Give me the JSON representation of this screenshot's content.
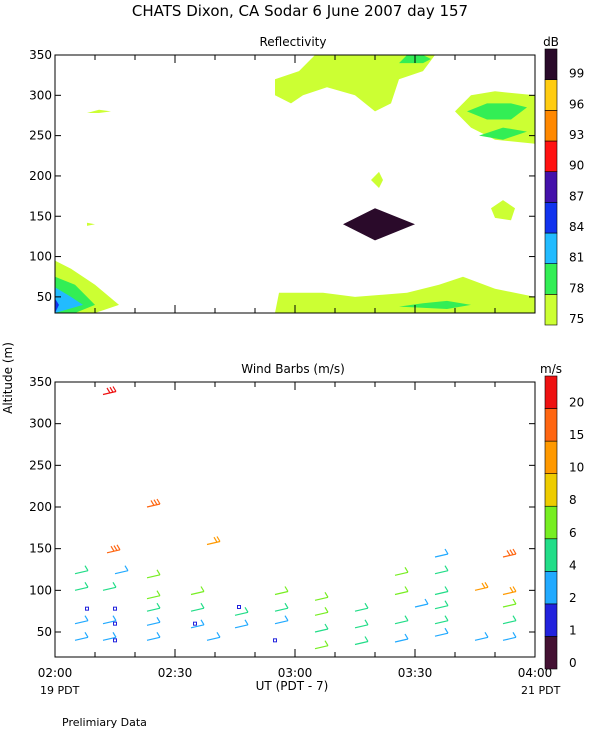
{
  "header": {
    "title": "CHATS Dixon, CA  Sodar   6 June 2007  day 157"
  },
  "chart_data": [
    {
      "type": "heatmap",
      "title": "Reflectivity",
      "ylabel": "Altitude (m)",
      "xlim": [
        "02:00",
        "04:00"
      ],
      "ylim": [
        30,
        350
      ],
      "x_ticks": [
        "02:00",
        "02:30",
        "03:00",
        "03:30",
        "04:00"
      ],
      "y_ticks": [
        50,
        100,
        150,
        200,
        250,
        300,
        350
      ],
      "colorbar": {
        "unit": "dB",
        "levels": [
          75,
          78,
          81,
          84,
          87,
          90,
          93,
          96,
          99
        ],
        "colors": [
          "#ccff33",
          "#33ee55",
          "#22bbff",
          "#1133ee",
          "#4411aa",
          "#ff1111",
          "#ff8800",
          "#ffcc11",
          "#2a0a2a"
        ]
      },
      "regions": [
        {
          "level": 75,
          "x": [
            "02:00",
            "02:00",
            "02:04",
            "02:10",
            "02:16",
            "02:10",
            "02:00"
          ],
          "y": [
            30,
            95,
            85,
            65,
            40,
            30,
            30
          ]
        },
        {
          "level": 78,
          "x": [
            "02:00",
            "02:00",
            "02:05",
            "02:10",
            "02:05",
            "02:00"
          ],
          "y": [
            30,
            75,
            65,
            40,
            30,
            30
          ]
        },
        {
          "level": 81,
          "x": [
            "02:00",
            "02:00",
            "02:04",
            "02:07",
            "02:00"
          ],
          "y": [
            30,
            62,
            50,
            40,
            30
          ]
        },
        {
          "level": 84,
          "x": [
            "02:00",
            "02:00",
            "02:01",
            "02:00"
          ],
          "y": [
            30,
            48,
            40,
            30
          ]
        },
        {
          "level": 75,
          "x": [
            "02:08",
            "02:11",
            "02:14",
            "02:11",
            "02:08"
          ],
          "y": [
            278,
            282,
            280,
            278,
            278
          ]
        },
        {
          "level": 75,
          "x": [
            "02:08",
            "02:10",
            "02:08",
            "02:08"
          ],
          "y": [
            138,
            140,
            142,
            138
          ]
        },
        {
          "level": 75,
          "x": [
            "02:55",
            "03:01",
            "03:05",
            "03:08",
            "03:12",
            "03:16",
            "03:20",
            "03:24",
            "03:26",
            "03:35",
            "03:32",
            "03:26",
            "03:24",
            "03:20",
            "03:15",
            "03:08",
            "03:02",
            "02:59",
            "02:55",
            "02:55"
          ],
          "y": [
            320,
            330,
            350,
            350,
            350,
            350,
            350,
            350,
            350,
            350,
            330,
            320,
            290,
            280,
            300,
            310,
            300,
            290,
            300,
            320
          ]
        },
        {
          "level": 78,
          "x": [
            "03:26",
            "03:28",
            "03:32",
            "03:34",
            "03:32",
            "03:26"
          ],
          "y": [
            340,
            350,
            350,
            345,
            340,
            340
          ]
        },
        {
          "level": 75,
          "x": [
            "03:19",
            "03:21",
            "03:22",
            "03:21",
            "03:19"
          ],
          "y": [
            195,
            205,
            195,
            185,
            195
          ]
        },
        {
          "level": 75,
          "x": [
            "03:49",
            "03:52",
            "03:55",
            "03:54",
            "03:50",
            "03:49"
          ],
          "y": [
            160,
            170,
            160,
            145,
            148,
            160
          ]
        },
        {
          "level": 75,
          "x": [
            "03:40",
            "03:44",
            "03:50",
            "04:00",
            "04:00",
            "03:50",
            "03:44",
            "03:40"
          ],
          "y": [
            280,
            300,
            305,
            300,
            240,
            245,
            260,
            280
          ]
        },
        {
          "level": 78,
          "x": [
            "03:43",
            "03:48",
            "03:54",
            "03:58",
            "03:54",
            "03:48",
            "03:43"
          ],
          "y": [
            280,
            290,
            290,
            285,
            270,
            270,
            280
          ]
        },
        {
          "level": 78,
          "x": [
            "03:46",
            "03:52",
            "03:58",
            "03:52",
            "03:46"
          ],
          "y": [
            250,
            260,
            255,
            245,
            250
          ]
        },
        {
          "level": 75,
          "x": [
            "02:55",
            "02:56",
            "03:07",
            "03:15",
            "03:28",
            "03:36",
            "03:42",
            "03:50",
            "04:00",
            "04:00",
            "02:55"
          ],
          "y": [
            30,
            55,
            55,
            50,
            55,
            65,
            75,
            60,
            50,
            30,
            30
          ]
        },
        {
          "level": 78,
          "x": [
            "03:26",
            "03:32",
            "03:38",
            "03:44",
            "03:38",
            "03:26"
          ],
          "y": [
            38,
            42,
            45,
            40,
            35,
            38
          ]
        },
        {
          "level": 99,
          "x": [
            "03:12",
            "03:20",
            "03:30",
            "03:20",
            "03:12"
          ],
          "y": [
            140,
            160,
            140,
            120,
            140
          ]
        }
      ]
    },
    {
      "type": "scatter",
      "title": "Wind Barbs (m/s)",
      "ylabel": "Altitude (m)",
      "xlabel": "UT  (PDT - 7)",
      "xlim": [
        "02:00",
        "04:00"
      ],
      "ylim": [
        20,
        350
      ],
      "x_ticks": [
        "02:00",
        "02:30",
        "03:00",
        "03:30",
        "04:00"
      ],
      "y_ticks": [
        50,
        100,
        150,
        200,
        250,
        300,
        350
      ],
      "colorbar": {
        "unit": "m/s",
        "levels": [
          0,
          1,
          2,
          4,
          6,
          8,
          10,
          15,
          20
        ],
        "colors": [
          "#441133",
          "#2222dd",
          "#22aaff",
          "#22dd88",
          "#77ee22",
          "#eecc00",
          "#ff9900",
          "#ff6611",
          "#ee1111"
        ]
      },
      "barbs": [
        {
          "x": "02:05",
          "y": 40,
          "s": 2
        },
        {
          "x": "02:05",
          "y": 60,
          "s": 3
        },
        {
          "x": "02:05",
          "y": 100,
          "s": 4
        },
        {
          "x": "02:05",
          "y": 120,
          "s": 5
        },
        {
          "x": "02:08",
          "y": 78,
          "s": 1
        },
        {
          "x": "02:12",
          "y": 40,
          "s": 2
        },
        {
          "x": "02:12",
          "y": 60,
          "s": 3
        },
        {
          "x": "02:12",
          "y": 100,
          "s": 5
        },
        {
          "x": "02:15",
          "y": 40,
          "s": 1
        },
        {
          "x": "02:15",
          "y": 60,
          "s": 1
        },
        {
          "x": "02:15",
          "y": 78,
          "s": 1
        },
        {
          "x": "02:15",
          "y": 120,
          "s": 3
        },
        {
          "x": "02:13",
          "y": 145,
          "s": 15
        },
        {
          "x": "02:12",
          "y": 335,
          "s": 20
        },
        {
          "x": "02:23",
          "y": 40,
          "s": 2
        },
        {
          "x": "02:23",
          "y": 58,
          "s": 2
        },
        {
          "x": "02:23",
          "y": 75,
          "s": 5
        },
        {
          "x": "02:23",
          "y": 90,
          "s": 6
        },
        {
          "x": "02:23",
          "y": 115,
          "s": 6
        },
        {
          "x": "02:23",
          "y": 200,
          "s": 15
        },
        {
          "x": "02:34",
          "y": 55,
          "s": 3
        },
        {
          "x": "02:34",
          "y": 75,
          "s": 5
        },
        {
          "x": "02:34",
          "y": 95,
          "s": 6
        },
        {
          "x": "02:35",
          "y": 60,
          "s": 1
        },
        {
          "x": "02:38",
          "y": 40,
          "s": 2
        },
        {
          "x": "02:38",
          "y": 155,
          "s": 10
        },
        {
          "x": "02:45",
          "y": 55,
          "s": 3
        },
        {
          "x": "02:45",
          "y": 70,
          "s": 5
        },
        {
          "x": "02:46",
          "y": 80,
          "s": 1
        },
        {
          "x": "02:55",
          "y": 40,
          "s": 1
        },
        {
          "x": "02:55",
          "y": 60,
          "s": 2
        },
        {
          "x": "02:55",
          "y": 75,
          "s": 4
        },
        {
          "x": "02:55",
          "y": 95,
          "s": 6
        },
        {
          "x": "03:05",
          "y": 30,
          "s": 6
        },
        {
          "x": "03:05",
          "y": 50,
          "s": 5
        },
        {
          "x": "03:05",
          "y": 70,
          "s": 6
        },
        {
          "x": "03:05",
          "y": 88,
          "s": 6
        },
        {
          "x": "03:15",
          "y": 35,
          "s": 4
        },
        {
          "x": "03:15",
          "y": 55,
          "s": 4
        },
        {
          "x": "03:15",
          "y": 75,
          "s": 5
        },
        {
          "x": "03:25",
          "y": 38,
          "s": 3
        },
        {
          "x": "03:25",
          "y": 60,
          "s": 4
        },
        {
          "x": "03:25",
          "y": 95,
          "s": 6
        },
        {
          "x": "03:25",
          "y": 118,
          "s": 6
        },
        {
          "x": "03:30",
          "y": 80,
          "s": 2
        },
        {
          "x": "03:35",
          "y": 45,
          "s": 3
        },
        {
          "x": "03:35",
          "y": 60,
          "s": 4
        },
        {
          "x": "03:35",
          "y": 78,
          "s": 4
        },
        {
          "x": "03:35",
          "y": 95,
          "s": 5
        },
        {
          "x": "03:35",
          "y": 120,
          "s": 4
        },
        {
          "x": "03:35",
          "y": 140,
          "s": 2
        },
        {
          "x": "03:45",
          "y": 40,
          "s": 3
        },
        {
          "x": "03:45",
          "y": 100,
          "s": 10
        },
        {
          "x": "03:52",
          "y": 40,
          "s": 3
        },
        {
          "x": "03:52",
          "y": 60,
          "s": 5
        },
        {
          "x": "03:52",
          "y": 80,
          "s": 6
        },
        {
          "x": "03:52",
          "y": 95,
          "s": 10
        },
        {
          "x": "03:52",
          "y": 140,
          "s": 15
        }
      ]
    }
  ],
  "footer": {
    "left_date": "19 PDT",
    "right_date": "21 PDT",
    "note": "Prelimiary Data"
  }
}
